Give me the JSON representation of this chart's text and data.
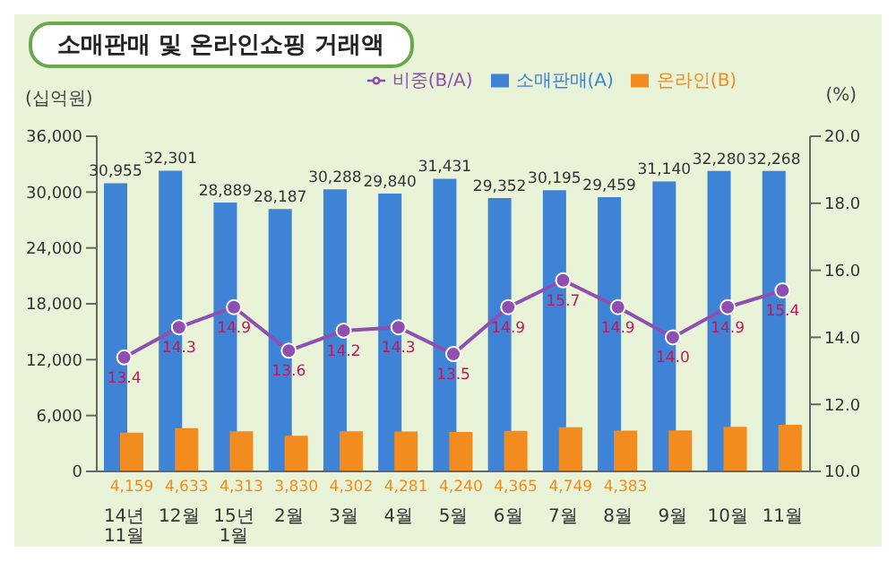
{
  "chart_data": {
    "type": "bar",
    "title": "소매판매 및 온라인쇼핑 거래액",
    "categories": [
      "14년 11월",
      "12월",
      "15년 1월",
      "2월",
      "3월",
      "4월",
      "5월",
      "6월",
      "7월",
      "8월",
      "9월",
      "10월",
      "11월"
    ],
    "series": [
      {
        "name": "비중(B/A)",
        "type": "line",
        "axis": "y2",
        "color": "#8e4fb0",
        "values": [
          13.4,
          14.3,
          14.9,
          13.6,
          14.2,
          14.3,
          13.5,
          14.9,
          15.7,
          14.9,
          14.0,
          14.9,
          15.4
        ],
        "value_labels": [
          "13.4",
          "14.3",
          "14.9",
          "13.6",
          "14.2",
          "14.3",
          "13.5",
          "14.9",
          "15.7",
          "14.9",
          "14.0",
          "14.9",
          "15.4"
        ]
      },
      {
        "name": "소매판매(A)",
        "color": "#3f83d6",
        "values": [
          30955,
          32301,
          28889,
          28187,
          30288,
          29840,
          31431,
          29352,
          30195,
          29459,
          31140,
          32280,
          32268
        ],
        "value_labels": [
          "30,955",
          "32,301",
          "28,889",
          "28,187",
          "30,288",
          "29,840",
          "31,431",
          "29,352",
          "30,195",
          "29,459",
          "31,140",
          "32,280",
          "32,268"
        ]
      },
      {
        "name": "온라인(B)",
        "color": "#f28c1e",
        "values": [
          4159,
          4633,
          4313,
          3830,
          4302,
          4281,
          4240,
          4365,
          4749,
          4383,
          4400,
          4800,
          5000
        ],
        "value_labels": [
          "4,159",
          "4,633",
          "4,313",
          "3,830",
          "4,302",
          "4,281",
          "4,240",
          "4,365",
          "4,749",
          "4,383",
          null,
          null,
          null
        ]
      }
    ],
    "ylabel": "(십억원)",
    "y2label": "(%)",
    "ylim": [
      0,
      36000
    ],
    "yticks": [
      {
        "value": 0,
        "label": "0"
      },
      {
        "value": 6000,
        "label": "6,000"
      },
      {
        "value": 12000,
        "label": "12,000"
      },
      {
        "value": 18000,
        "label": "18,000"
      },
      {
        "value": 24000,
        "label": "24,000"
      },
      {
        "value": 30000,
        "label": "30,000"
      },
      {
        "value": 36000,
        "label": "36,000"
      }
    ],
    "y2lim": [
      10,
      20
    ],
    "y2ticks": [
      {
        "value": 10,
        "label": "10.0"
      },
      {
        "value": 12,
        "label": "12.0"
      },
      {
        "value": 14,
        "label": "14.0"
      },
      {
        "value": 16,
        "label": "16.0"
      },
      {
        "value": 18,
        "label": "18.0"
      },
      {
        "value": 20,
        "label": "20.0"
      }
    ],
    "legend": "top",
    "marker": "circle"
  }
}
